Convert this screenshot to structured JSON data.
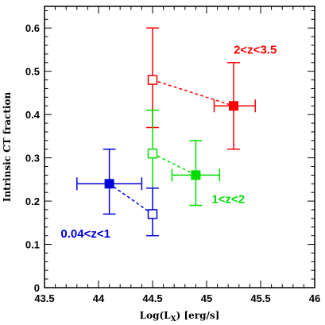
{
  "chart_data": {
    "type": "scatter",
    "xlabel": "Log(L",
    "xlabel_sub": "X",
    "xlabel_unit": ") [erg/s]",
    "ylabel": "Intrinsic CT fraction",
    "xlim": [
      43.5,
      46
    ],
    "ylim": [
      0,
      0.65
    ],
    "x_ticks": [
      "43.5",
      "44",
      "44.5",
      "45",
      "45.5",
      "46"
    ],
    "y_ticks": [
      "0",
      "0.1",
      "0.2",
      "0.3",
      "0.4",
      "0.5",
      "0.6"
    ],
    "grid": false,
    "series": [
      {
        "name": "2<z<3.5",
        "color": "#ff0000",
        "points": [
          {
            "x": 44.5,
            "y": 0.48,
            "yerr": [
              0.37,
              0.6
            ],
            "xerr": null,
            "marker": "open-square"
          },
          {
            "x": 45.25,
            "y": 0.42,
            "yerr": [
              0.32,
              0.52
            ],
            "xerr": [
              45.07,
              45.45
            ],
            "marker": "filled-square"
          }
        ]
      },
      {
        "name": "1<z<2",
        "color": "#00dd00",
        "points": [
          {
            "x": 44.5,
            "y": 0.31,
            "yerr": [
              0.23,
              0.41
            ],
            "xerr": null,
            "marker": "open-square"
          },
          {
            "x": 44.9,
            "y": 0.26,
            "yerr": [
              0.19,
              0.34
            ],
            "xerr": [
              44.68,
              45.12
            ],
            "marker": "filled-square"
          }
        ]
      },
      {
        "name": "0.04<z<1",
        "color": "#0000dd",
        "points": [
          {
            "x": 44.5,
            "y": 0.17,
            "yerr": [
              0.12,
              0.23
            ],
            "xerr": null,
            "marker": "open-square"
          },
          {
            "x": 44.1,
            "y": 0.24,
            "yerr": [
              0.17,
              0.32
            ],
            "xerr": [
              43.8,
              44.4
            ],
            "marker": "filled-square"
          }
        ]
      }
    ],
    "annotations": [
      {
        "text": "2<z<3.5",
        "color": "#ff0000",
        "x": 45.45,
        "y": 0.55
      },
      {
        "text": "1<z<2",
        "color": "#00dd00",
        "x": 45.2,
        "y": 0.205
      },
      {
        "text": "0.04<z<1",
        "color": "#0000dd",
        "x": 43.88,
        "y": 0.125
      }
    ]
  }
}
